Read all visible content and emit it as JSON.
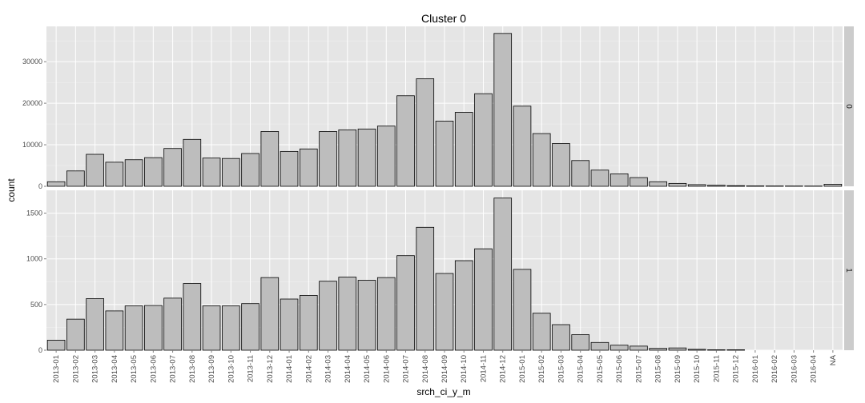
{
  "chart_data": {
    "type": "bar",
    "title": "Cluster  0",
    "xlabel": "srch_ci_y_m",
    "ylabel": "count",
    "colors": {
      "panel_bg": "#e5e5e5",
      "grid_major": "#ffffff",
      "grid_minor": "#f2f2f2",
      "bar_fill": "#bdbdbd",
      "bar_stroke": "#000000",
      "strip_bg": "#cccccc"
    },
    "categories": [
      "2013-01",
      "2013-02",
      "2013-03",
      "2013-04",
      "2013-05",
      "2013-06",
      "2013-07",
      "2013-08",
      "2013-09",
      "2013-10",
      "2013-11",
      "2013-12",
      "2014-01",
      "2014-02",
      "2014-03",
      "2014-04",
      "2014-05",
      "2014-06",
      "2014-07",
      "2014-08",
      "2014-09",
      "2014-10",
      "2014-11",
      "2014-12",
      "2015-01",
      "2015-02",
      "2015-03",
      "2015-04",
      "2015-05",
      "2015-06",
      "2015-07",
      "2015-08",
      "2015-09",
      "2015-10",
      "2015-11",
      "2015-12",
      "2016-01",
      "2016-02",
      "2016-03",
      "2016-04",
      "NA"
    ],
    "facets": [
      {
        "strip_label": "0",
        "ylim": [
          0,
          38500
        ],
        "yticks": [
          0,
          10000,
          20000,
          30000
        ],
        "values": [
          1100,
          3700,
          7700,
          5800,
          6400,
          6900,
          9100,
          11300,
          6800,
          6700,
          7900,
          13200,
          8400,
          9000,
          13200,
          13600,
          13800,
          14500,
          21800,
          25900,
          15700,
          17800,
          22300,
          36800,
          19300,
          12700,
          10300,
          6200,
          3900,
          3000,
          2100,
          1100,
          700,
          400,
          250,
          150,
          100,
          80,
          70,
          60,
          500
        ]
      },
      {
        "strip_label": "1",
        "ylim": [
          0,
          1750
        ],
        "yticks": [
          0,
          500,
          1000,
          1500
        ],
        "values": [
          110,
          340,
          565,
          430,
          485,
          490,
          570,
          730,
          485,
          485,
          510,
          795,
          560,
          600,
          755,
          800,
          765,
          795,
          1035,
          1345,
          840,
          980,
          1110,
          1665,
          885,
          405,
          280,
          170,
          85,
          55,
          45,
          20,
          25,
          10,
          5,
          5,
          0,
          0,
          0,
          0,
          0
        ]
      }
    ]
  }
}
